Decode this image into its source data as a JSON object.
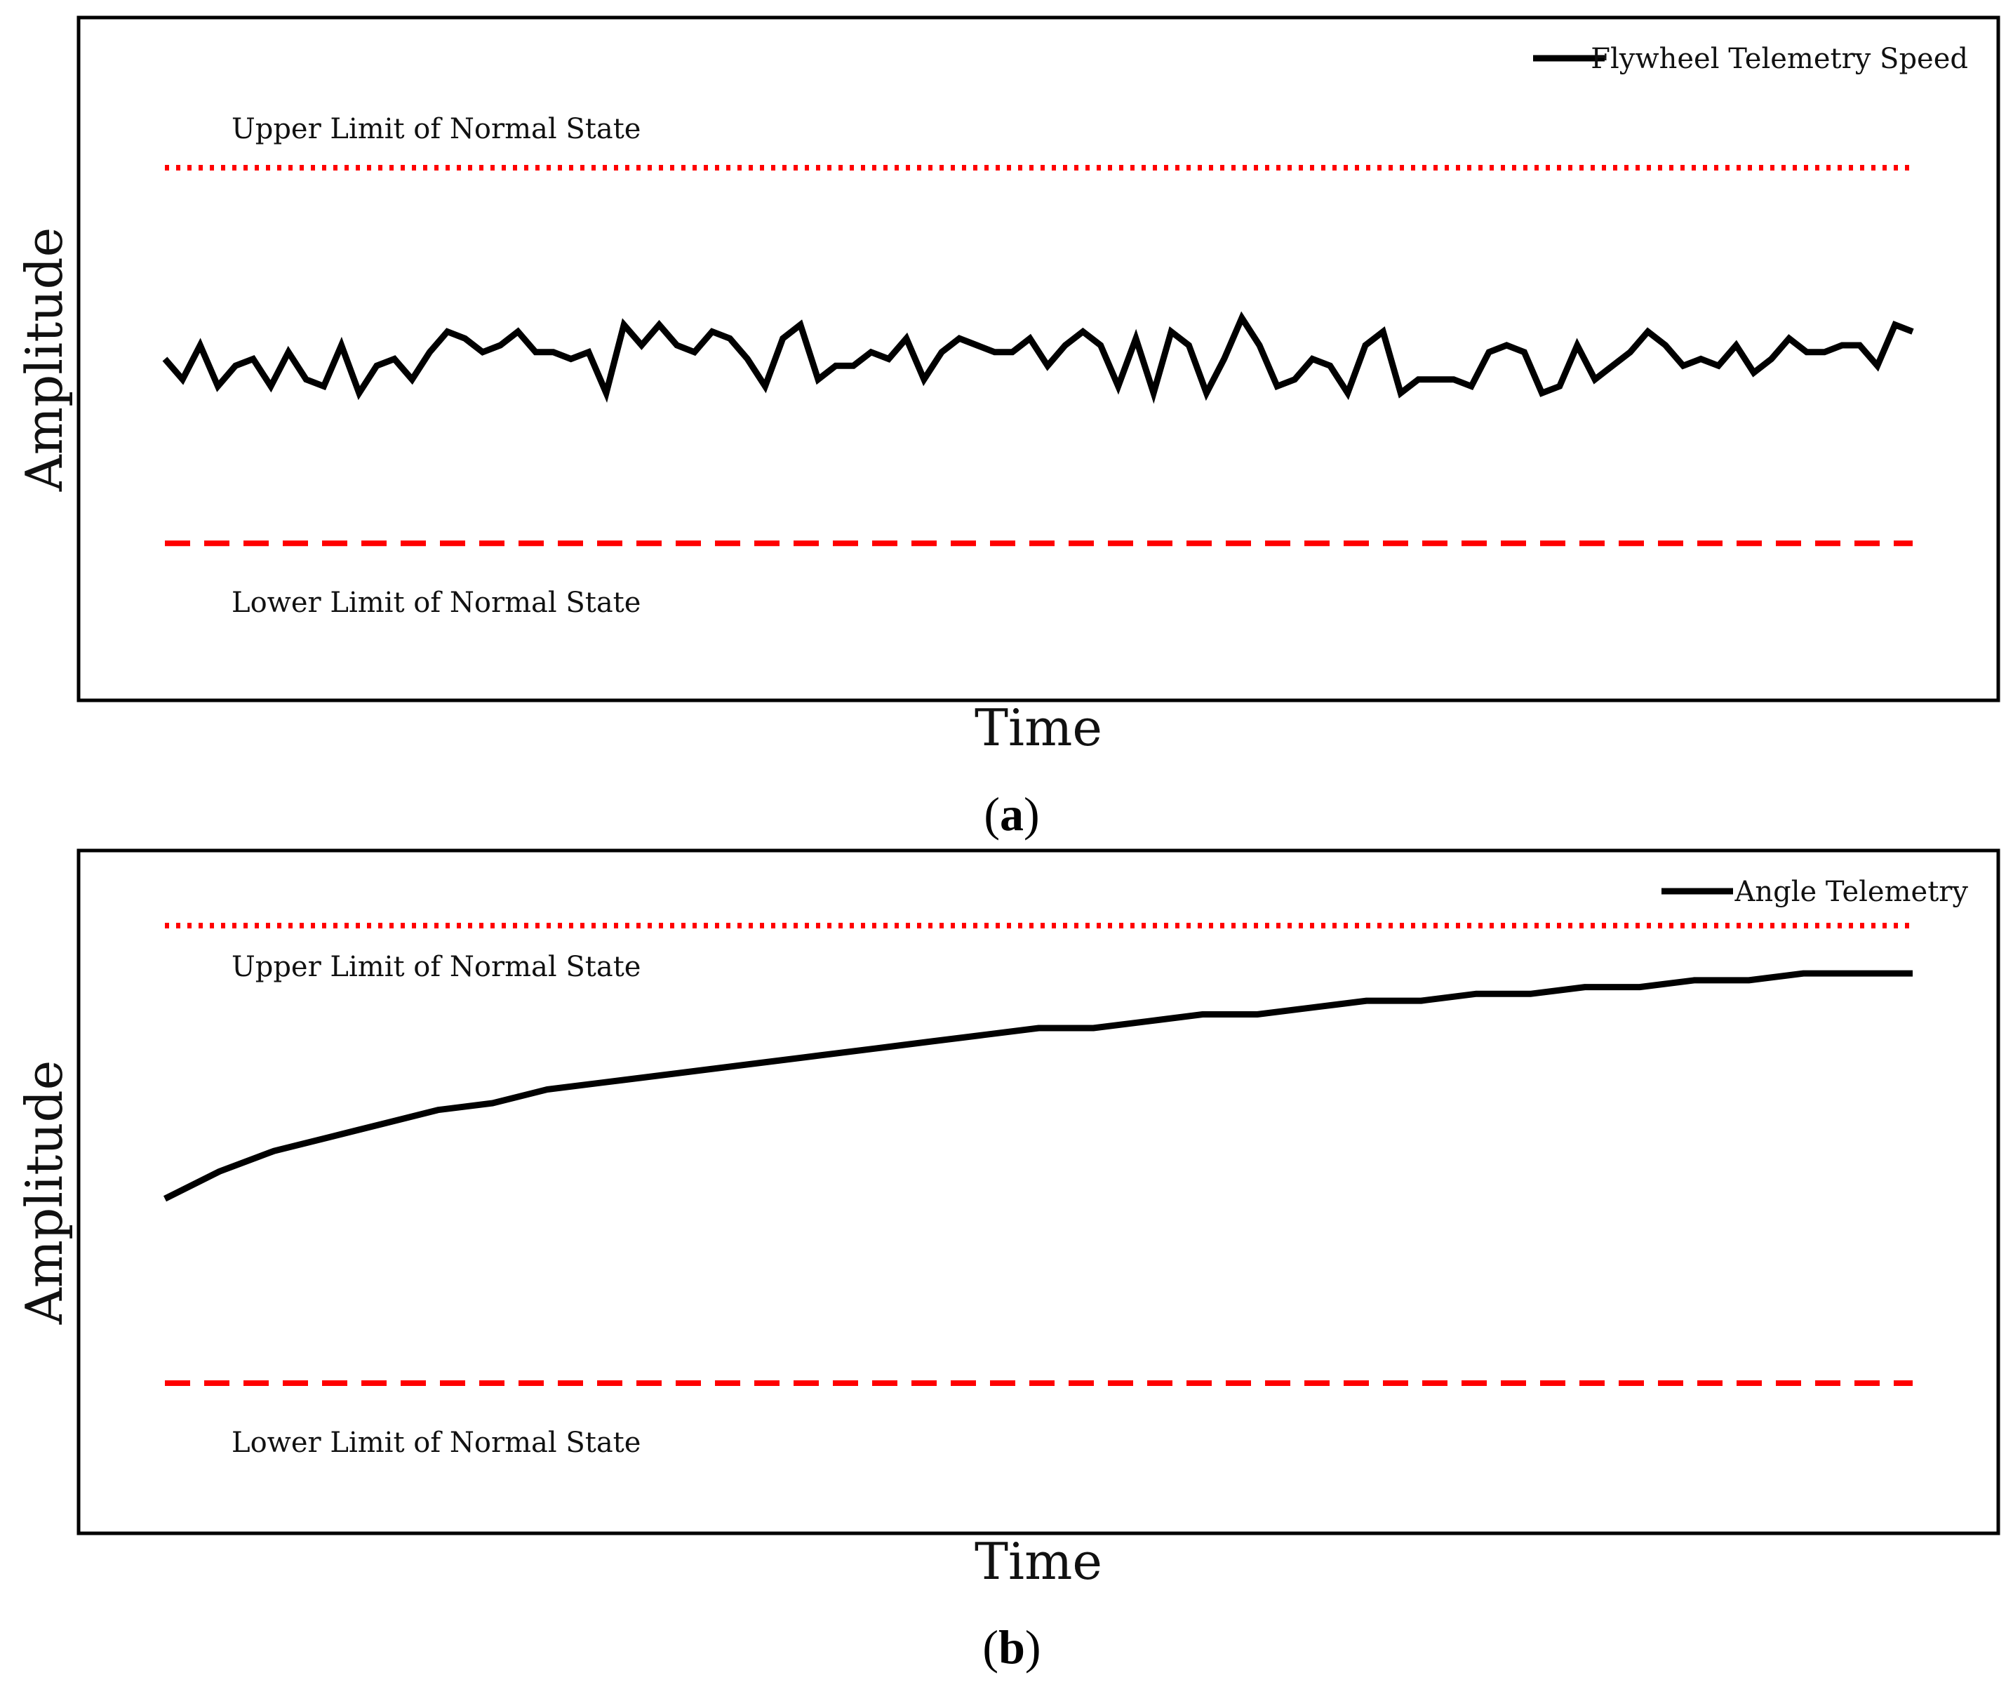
{
  "chart_data": [
    {
      "type": "line",
      "panel_label": "(a)",
      "panel_label_open": "(",
      "panel_label_letter": "a",
      "panel_label_close": ")",
      "title": "",
      "xlabel": "Time",
      "ylabel": "Amplitude",
      "ylim": [
        0,
        1
      ],
      "grid": false,
      "legend": {
        "placement": "top-right",
        "entries": [
          "Flywheel Telemetry Speed"
        ]
      },
      "colors": {
        "series": "#000000",
        "limit": "#ff0000"
      },
      "limits": [
        {
          "label": "Upper Limit of Normal State",
          "value": 0.78,
          "style": "dotted"
        },
        {
          "label": "Lower Limit of Normal State",
          "value": 0.23,
          "style": "dashed"
        }
      ],
      "series": [
        {
          "name": "Flywheel Telemetry Speed",
          "values": [
            0.5,
            0.47,
            0.52,
            0.46,
            0.49,
            0.5,
            0.46,
            0.51,
            0.47,
            0.46,
            0.52,
            0.45,
            0.49,
            0.5,
            0.47,
            0.51,
            0.54,
            0.53,
            0.51,
            0.52,
            0.54,
            0.51,
            0.51,
            0.5,
            0.51,
            0.45,
            0.55,
            0.52,
            0.55,
            0.52,
            0.51,
            0.54,
            0.53,
            0.5,
            0.46,
            0.53,
            0.55,
            0.47,
            0.49,
            0.49,
            0.51,
            0.5,
            0.53,
            0.47,
            0.51,
            0.53,
            0.52,
            0.51,
            0.51,
            0.53,
            0.49,
            0.52,
            0.54,
            0.52,
            0.46,
            0.53,
            0.45,
            0.54,
            0.52,
            0.45,
            0.5,
            0.56,
            0.52,
            0.46,
            0.47,
            0.5,
            0.49,
            0.45,
            0.52,
            0.54,
            0.45,
            0.47,
            0.47,
            0.47,
            0.46,
            0.51,
            0.52,
            0.51,
            0.45,
            0.46,
            0.52,
            0.47,
            0.49,
            0.51,
            0.54,
            0.52,
            0.49,
            0.5,
            0.49,
            0.52,
            0.48,
            0.5,
            0.53,
            0.51,
            0.51,
            0.52,
            0.52,
            0.49,
            0.55,
            0.54
          ]
        }
      ]
    },
    {
      "type": "line",
      "panel_label": "(b)",
      "panel_label_open": "(",
      "panel_label_letter": "b",
      "panel_label_close": ")",
      "title": "",
      "xlabel": "Time",
      "ylabel": "Amplitude",
      "ylim": [
        0,
        1
      ],
      "grid": false,
      "legend": {
        "placement": "top-right",
        "entries": [
          "Angle Telemetry"
        ]
      },
      "colors": {
        "series": "#000000",
        "limit": "#ff0000"
      },
      "limits": [
        {
          "label": "Upper Limit of Normal State",
          "value": 0.89,
          "style": "dotted"
        },
        {
          "label": "Lower Limit of Normal State",
          "value": 0.22,
          "style": "dashed"
        }
      ],
      "series": [
        {
          "name": "Angle Telemetry",
          "values": [
            0.49,
            0.53,
            0.56,
            0.58,
            0.6,
            0.62,
            0.63,
            0.65,
            0.66,
            0.67,
            0.68,
            0.69,
            0.7,
            0.71,
            0.72,
            0.73,
            0.74,
            0.74,
            0.75,
            0.76,
            0.76,
            0.77,
            0.78,
            0.78,
            0.79,
            0.79,
            0.8,
            0.8,
            0.81,
            0.81,
            0.82,
            0.82,
            0.82
          ]
        }
      ]
    }
  ]
}
